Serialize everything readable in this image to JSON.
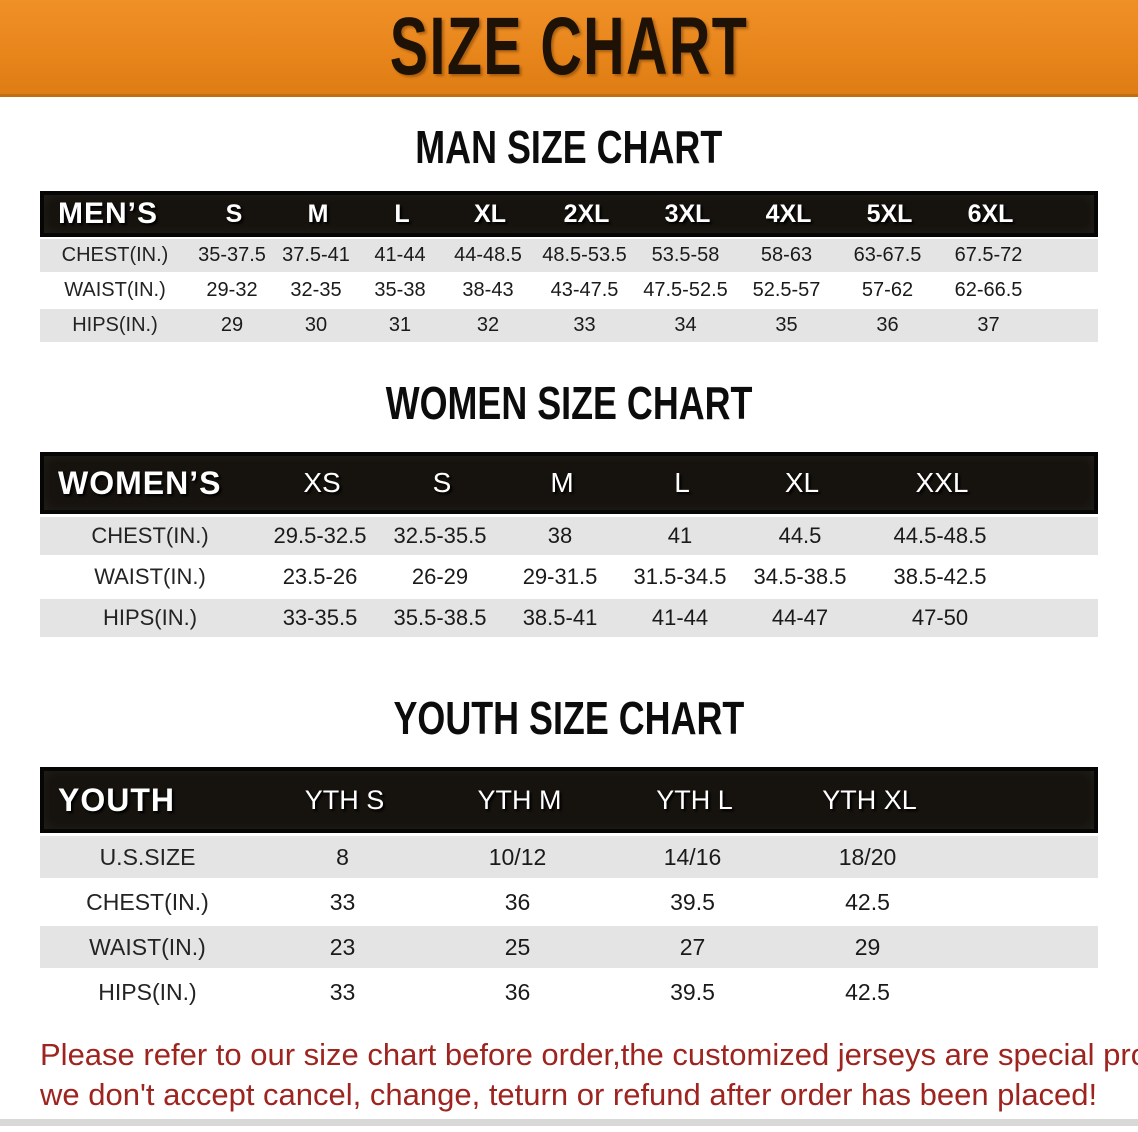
{
  "banner": {
    "title": "SIZE CHART",
    "bg_color": "#E8861C",
    "text_color": "#1E1106"
  },
  "sections": [
    {
      "title": "MAN SIZE CHART",
      "table": {
        "label": "MEN’S",
        "sizes": [
          "S",
          "M",
          "L",
          "XL",
          "2XL",
          "3XL",
          "4XL",
          "5XL",
          "6XL"
        ],
        "rows": [
          {
            "label": "CHEST(IN.)",
            "values": [
              "35-37.5",
              "37.5-41",
              "41-44",
              "44-48.5",
              "48.5-53.5",
              "53.5-58",
              "58-63",
              "63-67.5",
              "67.5-72"
            ]
          },
          {
            "label": "WAIST(IN.)",
            "values": [
              "29-32",
              "32-35",
              "35-38",
              "38-43",
              "43-47.5",
              "47.5-52.5",
              "52.5-57",
              "57-62",
              "62-66.5"
            ]
          },
          {
            "label": "HIPS(IN.)",
            "values": [
              "29",
              "30",
              "31",
              "32",
              "33",
              "34",
              "35",
              "36",
              "37"
            ]
          }
        ]
      }
    },
    {
      "title": "WOMEN SIZE CHART",
      "table": {
        "label": "WOMEN’S",
        "sizes": [
          "XS",
          "S",
          "M",
          "L",
          "XL",
          "XXL"
        ],
        "rows": [
          {
            "label": "CHEST(IN.)",
            "values": [
              "29.5-32.5",
              "32.5-35.5",
              "38",
              "41",
              "44.5",
              "44.5-48.5"
            ]
          },
          {
            "label": "WAIST(IN.)",
            "values": [
              "23.5-26",
              "26-29",
              "29-31.5",
              "31.5-34.5",
              "34.5-38.5",
              "38.5-42.5"
            ]
          },
          {
            "label": "HIPS(IN.)",
            "values": [
              "33-35.5",
              "35.5-38.5",
              "38.5-41",
              "41-44",
              "44-47",
              "47-50"
            ]
          }
        ]
      }
    },
    {
      "title": "YOUTH SIZE CHART",
      "table": {
        "label": "YOUTH",
        "sizes": [
          "YTH S",
          "YTH M",
          "YTH L",
          "YTH XL"
        ],
        "rows": [
          {
            "label": "U.S.SIZE",
            "values": [
              "8",
              "10/12",
              "14/16",
              "18/20"
            ]
          },
          {
            "label": "CHEST(IN.)",
            "values": [
              "33",
              "36",
              "39.5",
              "42.5"
            ]
          },
          {
            "label": "WAIST(IN.)",
            "values": [
              "23",
              "25",
              "27",
              "29"
            ]
          },
          {
            "label": "HIPS(IN.)",
            "values": [
              "33",
              "36",
              "39.5",
              "42.5"
            ]
          }
        ]
      }
    }
  ],
  "note": {
    "line1": "Please refer to our size chart before order,the customized jerseys are special products,",
    "line2": "we don't accept cancel, change, teturn or refund after order has been placed!",
    "color": "#9e2420"
  }
}
